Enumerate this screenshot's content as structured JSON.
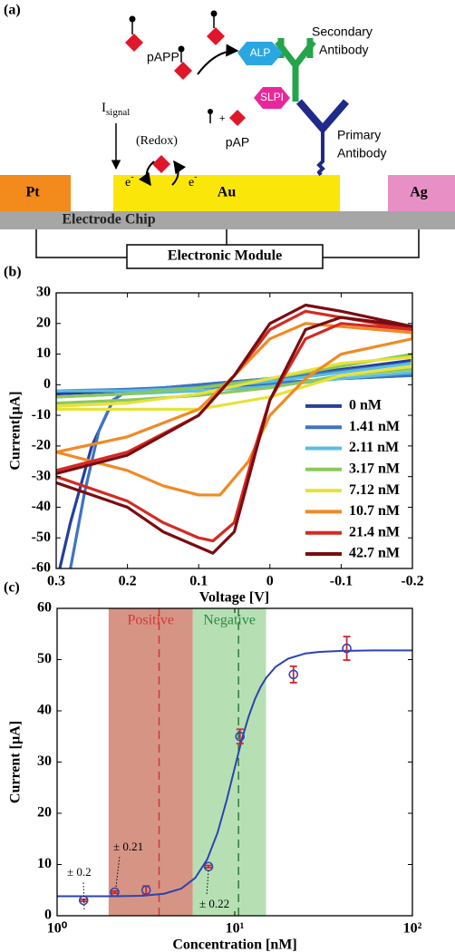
{
  "diagram": {
    "label": "(a)",
    "pAPP": "pAPP",
    "ALP": "ALP",
    "secondary": [
      "Secondary",
      "Antibody"
    ],
    "SLPI": "SLPI",
    "plus": "+",
    "pAP": "pAP",
    "primary": [
      "Primary",
      "Antibody"
    ],
    "signal": {
      "main": "I",
      "sub": "signal"
    },
    "redox": "(Redox)",
    "electron_left": {
      "base": "e",
      "sup": "-"
    },
    "electron_right": {
      "base": "e",
      "sup": "-"
    },
    "electrodes": [
      "Pt",
      "Au",
      "Ag"
    ],
    "chip": "Electrode Chip",
    "module": "Electronic Module"
  },
  "chart_data": [
    {
      "type": "line",
      "label": "(b)",
      "xlabel": "Voltage [V]",
      "ylabel": "Current[µA]",
      "xlim": [
        0.3,
        -0.2
      ],
      "xticks": [
        0.3,
        0.2,
        0.1,
        0,
        -0.1,
        -0.2
      ],
      "ylim": [
        -60,
        30
      ],
      "yticks": [
        -60,
        -50,
        -40,
        -30,
        -20,
        -10,
        0,
        10,
        20,
        30
      ],
      "legend": "lower right",
      "series": [
        {
          "name": "0 nM",
          "color": "#26409a",
          "x": [
            0.3,
            0.2,
            0.1,
            0,
            -0.1,
            -0.2,
            -0.2,
            -0.1,
            0,
            0.1,
            0.2,
            0.22,
            0.25,
            0.28,
            0.295
          ],
          "values": [
            -3,
            -2,
            -1,
            0,
            2,
            3,
            8,
            5,
            2,
            0,
            -2,
            -5,
            -20,
            -45,
            -60
          ]
        },
        {
          "name": "1.41 nM",
          "color": "#3d74c0",
          "x": [
            0.3,
            0.2,
            0.1,
            0,
            -0.1,
            -0.2,
            -0.2,
            -0.1,
            0,
            0.1,
            0.2,
            0.22,
            0.24,
            0.26,
            0.28
          ],
          "values": [
            -2,
            -1.5,
            -0.5,
            0.5,
            2,
            3,
            7,
            4.5,
            2,
            0,
            -2,
            -5,
            -15,
            -35,
            -60
          ]
        },
        {
          "name": "2.11 nM",
          "color": "#5bbde0",
          "x": [
            0.3,
            0.2,
            0.1,
            0,
            -0.1,
            -0.2,
            -0.2,
            -0.1,
            0,
            0.1,
            0.2,
            0.3
          ],
          "values": [
            -4,
            -3,
            -2,
            -0.5,
            2,
            4,
            7,
            4,
            1,
            -1,
            -2,
            -2
          ]
        },
        {
          "name": "3.17 nM",
          "color": "#8cc85a",
          "x": [
            0.3,
            0.2,
            0.1,
            0,
            -0.1,
            -0.2,
            -0.2,
            -0.1,
            0,
            0.1,
            0.2,
            0.3
          ],
          "values": [
            -6,
            -5,
            -3.5,
            -1,
            3,
            5,
            10,
            6,
            2,
            -1,
            -3,
            -4
          ]
        },
        {
          "name": "7.12 nM",
          "color": "#e8e23a",
          "x": [
            0.3,
            0.2,
            0.1,
            0,
            -0.1,
            -0.2,
            -0.2,
            -0.1,
            0,
            0.1,
            0.2,
            0.3
          ],
          "values": [
            -8,
            -8,
            -8,
            -4,
            3,
            6,
            9,
            7,
            2,
            -3,
            -6,
            -7
          ]
        },
        {
          "name": "10.7 nM",
          "color": "#f08a24",
          "x": [
            0.3,
            0.2,
            0.15,
            0.1,
            0.07,
            0.03,
            0,
            -0.05,
            -0.1,
            -0.2,
            -0.2,
            -0.1,
            -0.05,
            0,
            0.05,
            0.1,
            0.2,
            0.3
          ],
          "values": [
            -22,
            -28,
            -33,
            -36,
            -36,
            -25,
            -10,
            2,
            10,
            15,
            17,
            19,
            20,
            15,
            3,
            -8,
            -17,
            -22
          ]
        },
        {
          "name": "21.4 nM",
          "color": "#d42a22",
          "x": [
            0.3,
            0.2,
            0.15,
            0.1,
            0.08,
            0.05,
            0.02,
            0,
            -0.05,
            -0.1,
            -0.2,
            -0.2,
            -0.1,
            -0.05,
            0,
            0.05,
            0.1,
            0.2,
            0.3
          ],
          "values": [
            -30,
            -38,
            -45,
            -50,
            -51,
            -45,
            -20,
            -5,
            15,
            20,
            18,
            18,
            22,
            24,
            18,
            3,
            -10,
            -22,
            -28
          ]
        },
        {
          "name": "42.7 nM",
          "color": "#7a0c10",
          "x": [
            0.3,
            0.2,
            0.15,
            0.1,
            0.08,
            0.05,
            0.02,
            0,
            -0.05,
            -0.1,
            -0.2,
            -0.2,
            -0.1,
            -0.05,
            0,
            0.05,
            0.1,
            0.2,
            0.3
          ],
          "values": [
            -32,
            -40,
            -48,
            -53,
            -55,
            -48,
            -22,
            -5,
            18,
            22,
            19,
            19,
            24,
            26,
            20,
            3,
            -10,
            -23,
            -29
          ]
        }
      ]
    },
    {
      "type": "scatter",
      "label": "(c)",
      "xlabel": "Concentration [nM]",
      "ylabel": "Current [µA]",
      "xlog": true,
      "xlim": [
        1,
        100
      ],
      "xticks": [
        {
          "value": 1,
          "label": "10⁰"
        },
        {
          "value": 10,
          "label": "10¹"
        },
        {
          "value": 100,
          "label": "10²"
        }
      ],
      "ylim": [
        0,
        60
      ],
      "yticks": [
        0,
        10,
        20,
        30,
        40,
        50,
        60
      ],
      "regions": [
        {
          "name": "Positive",
          "range": [
            1.95,
            5.8
          ],
          "center": 3.75,
          "color": "#c8705c",
          "text_color": "#d23a34",
          "line_color": "#d23a34"
        },
        {
          "name": "Negative",
          "range": [
            5.8,
            15
          ],
          "center": 10.5,
          "color": "#9ed69a",
          "text_color": "#2f8a45",
          "line_color": "#2f7a3c"
        }
      ],
      "x": [
        1.41,
        2.11,
        3.17,
        7.12,
        10.7,
        21.4,
        42.7
      ],
      "values": [
        3.0,
        4.6,
        5.0,
        9.6,
        35.0,
        47.1,
        52.2
      ],
      "errors": [
        0.2,
        0.21,
        0.8,
        0.22,
        1.4,
        1.6,
        2.3
      ],
      "marker_color": "#3a44a8",
      "error_color": "#d0262e",
      "annotations": [
        "± 0.2",
        "± 0.21",
        "± 0.22"
      ],
      "fit": {
        "color": "#2a44b0",
        "x": [
          1,
          2,
          3,
          4,
          5,
          6,
          7,
          8,
          9,
          10,
          11,
          12,
          13,
          14,
          15,
          17,
          20,
          25,
          30,
          40,
          60,
          100
        ],
        "y": [
          3.8,
          3.8,
          3.9,
          4.3,
          5.3,
          7.4,
          11.0,
          16.2,
          22.5,
          28.9,
          34.6,
          39.0,
          42.3,
          44.7,
          46.4,
          48.6,
          50.2,
          51.2,
          51.5,
          51.7,
          51.8,
          51.8
        ]
      }
    }
  ]
}
